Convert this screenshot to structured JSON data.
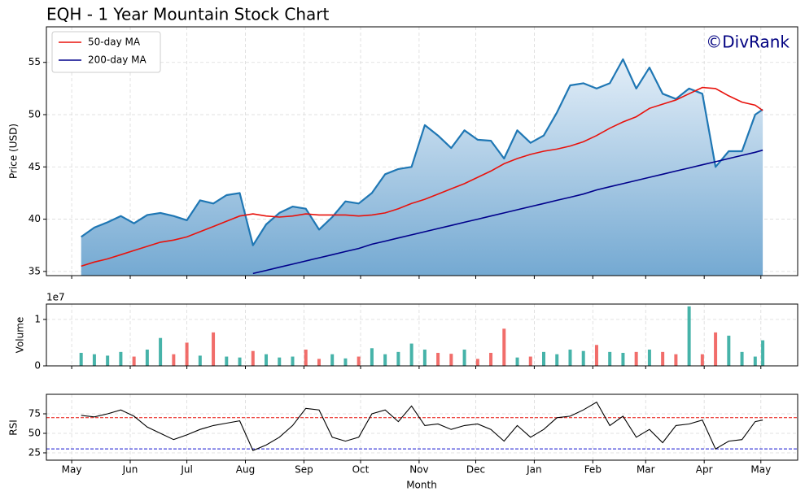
{
  "chart_data": [
    {
      "type": "area",
      "title": "EQH - 1 Year Mountain Stock Chart",
      "watermark": "©DivRank",
      "ylabel": "Price (USD)",
      "x": [
        5,
        12,
        19,
        26,
        33,
        40,
        47,
        54,
        61,
        68,
        75,
        82,
        89,
        96,
        103,
        110,
        117,
        124,
        131,
        138,
        145,
        152,
        159,
        166,
        173,
        180,
        187,
        194,
        201,
        208,
        215,
        222,
        229,
        236,
        243,
        250,
        257,
        264,
        271,
        278,
        285,
        292,
        299,
        306,
        313,
        320,
        327,
        334,
        341,
        348,
        355,
        362,
        366
      ],
      "xlim": [
        -13.4,
        384.5
      ],
      "price": {
        "color": "#1f77b4",
        "values": [
          38.3,
          39.2,
          39.7,
          40.3,
          39.6,
          40.4,
          40.6,
          40.3,
          39.9,
          41.8,
          41.5,
          42.3,
          42.5,
          37.5,
          39.5,
          40.6,
          41.2,
          41.0,
          39.0,
          40.2,
          41.7,
          41.5,
          42.5,
          44.3,
          44.8,
          45.0,
          49.0,
          48.0,
          46.8,
          48.5,
          47.6,
          47.5,
          45.8,
          48.5,
          47.3,
          48.0,
          50.2,
          52.8,
          53.0,
          52.5,
          53.0,
          55.3,
          52.5,
          54.5,
          52.0,
          51.5,
          52.5,
          52.0,
          45.0,
          46.5,
          46.5,
          50.0,
          50.5
        ]
      },
      "series": [
        {
          "name": "50-day MA",
          "color": "#e8120c",
          "values": [
            35.5,
            35.9,
            36.2,
            36.6,
            37.0,
            37.4,
            37.8,
            38.0,
            38.3,
            38.8,
            39.3,
            39.8,
            40.3,
            40.5,
            40.3,
            40.2,
            40.3,
            40.5,
            40.4,
            40.4,
            40.4,
            40.3,
            40.4,
            40.6,
            41.0,
            41.5,
            41.9,
            42.4,
            42.9,
            43.4,
            44.0,
            44.6,
            45.3,
            45.8,
            46.2,
            46.5,
            46.7,
            47.0,
            47.4,
            48.0,
            48.7,
            49.3,
            49.8,
            50.6,
            51.0,
            51.4,
            52.0,
            52.6,
            52.5,
            51.8,
            51.2,
            50.9,
            50.4
          ]
        },
        {
          "name": "200-day MA",
          "color": "#00008b",
          "values": [
            null,
            null,
            null,
            null,
            null,
            null,
            null,
            null,
            null,
            null,
            null,
            null,
            null,
            34.8,
            35.1,
            35.4,
            35.7,
            36.0,
            36.3,
            36.6,
            36.9,
            37.2,
            37.6,
            37.9,
            38.2,
            38.5,
            38.8,
            39.1,
            39.4,
            39.7,
            40.0,
            40.3,
            40.6,
            40.9,
            41.2,
            41.5,
            41.8,
            42.1,
            42.4,
            42.8,
            43.1,
            43.4,
            43.7,
            44.0,
            44.3,
            44.6,
            44.9,
            45.2,
            45.5,
            45.8,
            46.1,
            46.4,
            46.6
          ]
        }
      ],
      "ylim": [
        34.6,
        58.4
      ],
      "yticks": [
        35,
        40,
        45,
        50,
        55
      ],
      "grid": true,
      "legend": "upper left"
    },
    {
      "type": "bar",
      "ylabel": "Volume",
      "y_offset_label": "1e7",
      "up_color": "#26a69a",
      "down_color": "#ef5350",
      "x": [
        5,
        12,
        19,
        26,
        33,
        40,
        47,
        54,
        61,
        68,
        75,
        82,
        89,
        96,
        103,
        110,
        117,
        124,
        131,
        138,
        145,
        152,
        159,
        166,
        173,
        180,
        187,
        194,
        201,
        208,
        215,
        222,
        229,
        236,
        243,
        250,
        257,
        264,
        271,
        278,
        285,
        292,
        299,
        306,
        313,
        320,
        327,
        334,
        341,
        348,
        355,
        362,
        366
      ],
      "xlim": [
        -13.4,
        384.5
      ],
      "values": [
        2800000,
        2500000,
        2200000,
        3000000,
        2000000,
        3500000,
        6000000,
        2500000,
        5000000,
        2200000,
        7200000,
        2000000,
        1800000,
        3200000,
        2500000,
        1800000,
        2000000,
        3500000,
        1500000,
        2500000,
        1600000,
        2000000,
        3800000,
        2500000,
        3000000,
        4800000,
        3500000,
        2800000,
        2600000,
        3500000,
        1500000,
        2800000,
        8000000,
        1800000,
        2000000,
        3000000,
        2500000,
        3500000,
        3200000,
        4500000,
        3000000,
        2800000,
        3000000,
        3500000,
        3000000,
        2500000,
        12800000,
        2500000,
        7200000,
        6500000,
        3000000,
        2000000,
        5500000
      ],
      "ylim": [
        0,
        13300000
      ],
      "yticks": [
        0,
        {
          "value": 10000000,
          "label": "1"
        }
      ],
      "grid": true
    },
    {
      "type": "line",
      "ylabel": "RSI",
      "xlabel": "Month",
      "color": "#000000",
      "x": [
        5,
        12,
        19,
        26,
        33,
        40,
        47,
        54,
        61,
        68,
        75,
        82,
        89,
        96,
        103,
        110,
        117,
        124,
        131,
        138,
        145,
        152,
        159,
        166,
        173,
        180,
        187,
        194,
        201,
        208,
        215,
        222,
        229,
        236,
        243,
        250,
        257,
        264,
        271,
        278,
        285,
        292,
        299,
        306,
        313,
        320,
        327,
        334,
        341,
        348,
        355,
        362,
        366
      ],
      "xlim": [
        -13.4,
        384.5
      ],
      "values": [
        73,
        71,
        75,
        80,
        72,
        58,
        50,
        42,
        48,
        55,
        60,
        63,
        66,
        28,
        35,
        45,
        60,
        82,
        80,
        45,
        40,
        45,
        75,
        80,
        65,
        85,
        60,
        62,
        55,
        60,
        62,
        55,
        40,
        60,
        45,
        55,
        70,
        72,
        80,
        90,
        60,
        72,
        45,
        55,
        38,
        60,
        62,
        67,
        30,
        40,
        42,
        65,
        67
      ],
      "ylim": [
        15.6,
        100
      ],
      "yticks": [
        25,
        50,
        75
      ],
      "grid": true,
      "hlines": [
        {
          "value": 70,
          "color": "#e8120c"
        },
        {
          "value": 30,
          "color": "#1010d0"
        }
      ],
      "xticks": [
        {
          "value": 0,
          "label": "May"
        },
        {
          "value": 31,
          "label": "Jun"
        },
        {
          "value": 61,
          "label": "Jul"
        },
        {
          "value": 92,
          "label": "Aug"
        },
        {
          "value": 123,
          "label": "Sep"
        },
        {
          "value": 153,
          "label": "Oct"
        },
        {
          "value": 184,
          "label": "Nov"
        },
        {
          "value": 214,
          "label": "Dec"
        },
        {
          "value": 245,
          "label": "Jan"
        },
        {
          "value": 276,
          "label": "Feb"
        },
        {
          "value": 304,
          "label": "Mar"
        },
        {
          "value": 335,
          "label": "Apr"
        },
        {
          "value": 365,
          "label": "May"
        }
      ]
    }
  ]
}
